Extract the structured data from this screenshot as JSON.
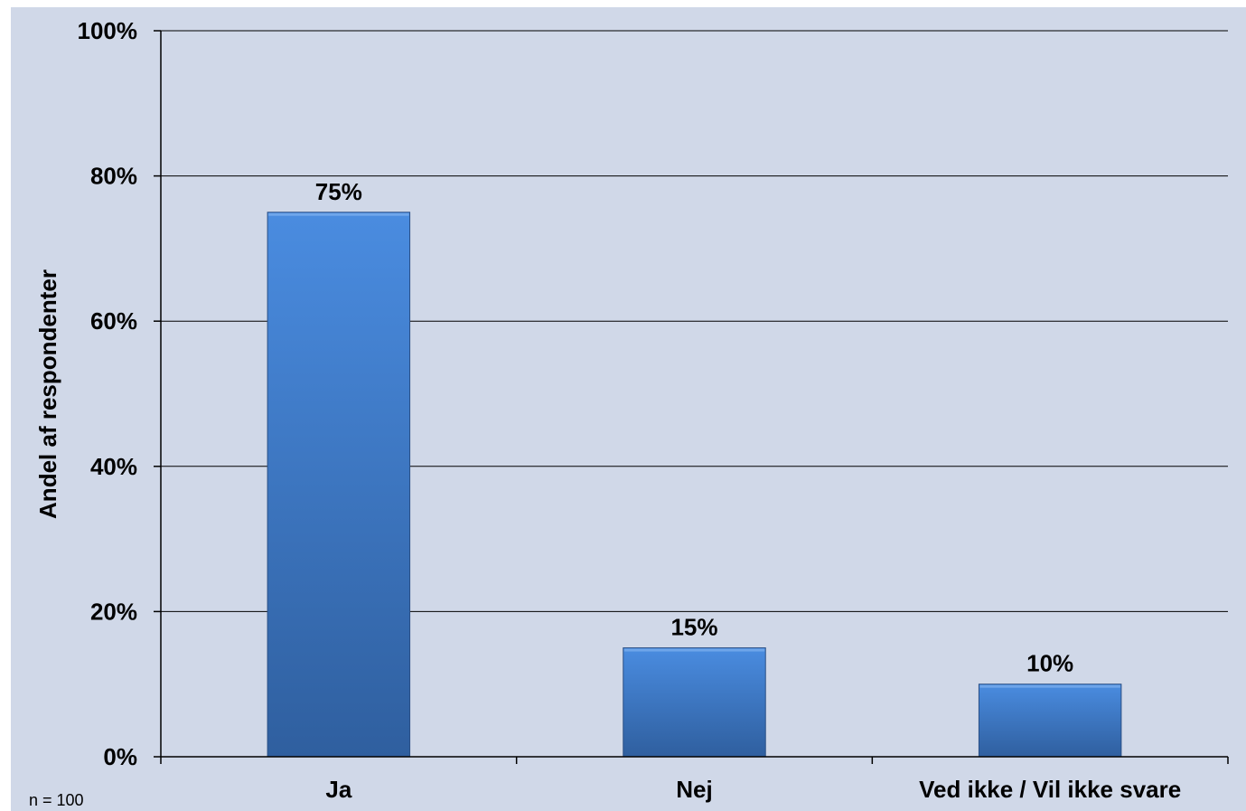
{
  "chart_data": {
    "type": "bar",
    "categories": [
      "Ja",
      "Nej",
      "Ved ikke / Vil ikke svare"
    ],
    "values": [
      75,
      15,
      10
    ],
    "data_labels": [
      "75%",
      "15%",
      "10%"
    ],
    "title": "",
    "xlabel": "",
    "ylabel": "Andel af respondenter",
    "ylim": [
      0,
      100
    ],
    "y_ticks": [
      0,
      20,
      40,
      60,
      80,
      100
    ],
    "y_tick_labels": [
      "0%",
      "20%",
      "40%",
      "60%",
      "80%",
      "100%"
    ],
    "grid": true,
    "legend": "none"
  },
  "footnote": "n = 100",
  "colors": {
    "plot_background": "#d0d8e8",
    "bar_light": "#4a8ce0",
    "bar_dark": "#2f5f9f",
    "gridline": "#000000"
  }
}
